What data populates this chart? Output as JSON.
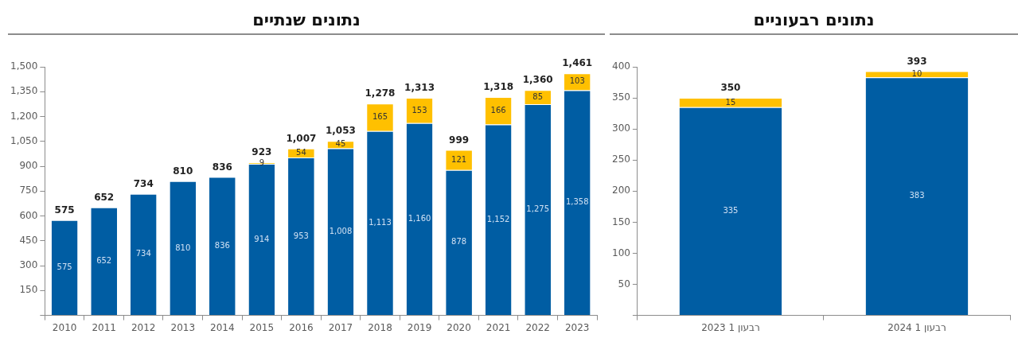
{
  "chart_data": [
    {
      "type": "bar",
      "title": "נתונים שנתיים",
      "stacked": true,
      "categories": [
        "2010",
        "2011",
        "2012",
        "2013",
        "2014",
        "2015",
        "2016",
        "2017",
        "2018",
        "2019",
        "2020",
        "2021",
        "2022",
        "2023"
      ],
      "series": [
        {
          "color": "#005da3",
          "values": [
            575,
            652,
            734,
            810,
            836,
            914,
            953,
            1008,
            1113,
            1160,
            878,
            1152,
            1275,
            1358
          ],
          "value_labels": [
            "575",
            "652",
            "734",
            "810",
            "836",
            "914",
            "953",
            "1,008",
            "1,113",
            "1,160",
            "878",
            "1,152",
            "1,275",
            "1,358"
          ]
        },
        {
          "color": "#ffc000",
          "values": [
            0,
            0,
            0,
            0,
            0,
            9,
            54,
            45,
            165,
            153,
            121,
            166,
            85,
            103
          ],
          "value_labels": [
            null,
            null,
            null,
            null,
            null,
            "9",
            "54",
            "45",
            "165",
            "153",
            "121",
            "166",
            "85",
            "103"
          ]
        }
      ],
      "totals": [
        "575",
        "652",
        "734",
        "810",
        "836",
        "923",
        "1,007",
        "1,053",
        "1,278",
        "1,313",
        "999",
        "1,318",
        "1,360",
        "1,461"
      ],
      "ylim": [
        0,
        1500
      ],
      "yticks": [
        {
          "value": 0,
          "label": null
        },
        150,
        300,
        450,
        600,
        750,
        900,
        {
          "value": 1050,
          "label": "1,050"
        },
        {
          "value": 1200,
          "label": "1,200"
        },
        {
          "value": 1350,
          "label": "1,350"
        },
        {
          "value": 1500,
          "label": "1,500"
        }
      ]
    },
    {
      "type": "bar",
      "title": "נתונים רבעוניים",
      "stacked": true,
      "categories": [
        "רבעון 1 2023",
        "רבעון 1 2024"
      ],
      "series": [
        {
          "color": "#005da3",
          "values": [
            335,
            383
          ],
          "value_labels": [
            "335",
            "383"
          ]
        },
        {
          "color": "#ffc000",
          "values": [
            15,
            10
          ],
          "value_labels": [
            "15",
            "10"
          ]
        }
      ],
      "totals": [
        "350",
        "393"
      ],
      "ylim": [
        0,
        400
      ],
      "yticks": [
        {
          "value": 0,
          "label": null
        },
        50,
        100,
        150,
        200,
        250,
        300,
        350,
        400
      ]
    }
  ]
}
